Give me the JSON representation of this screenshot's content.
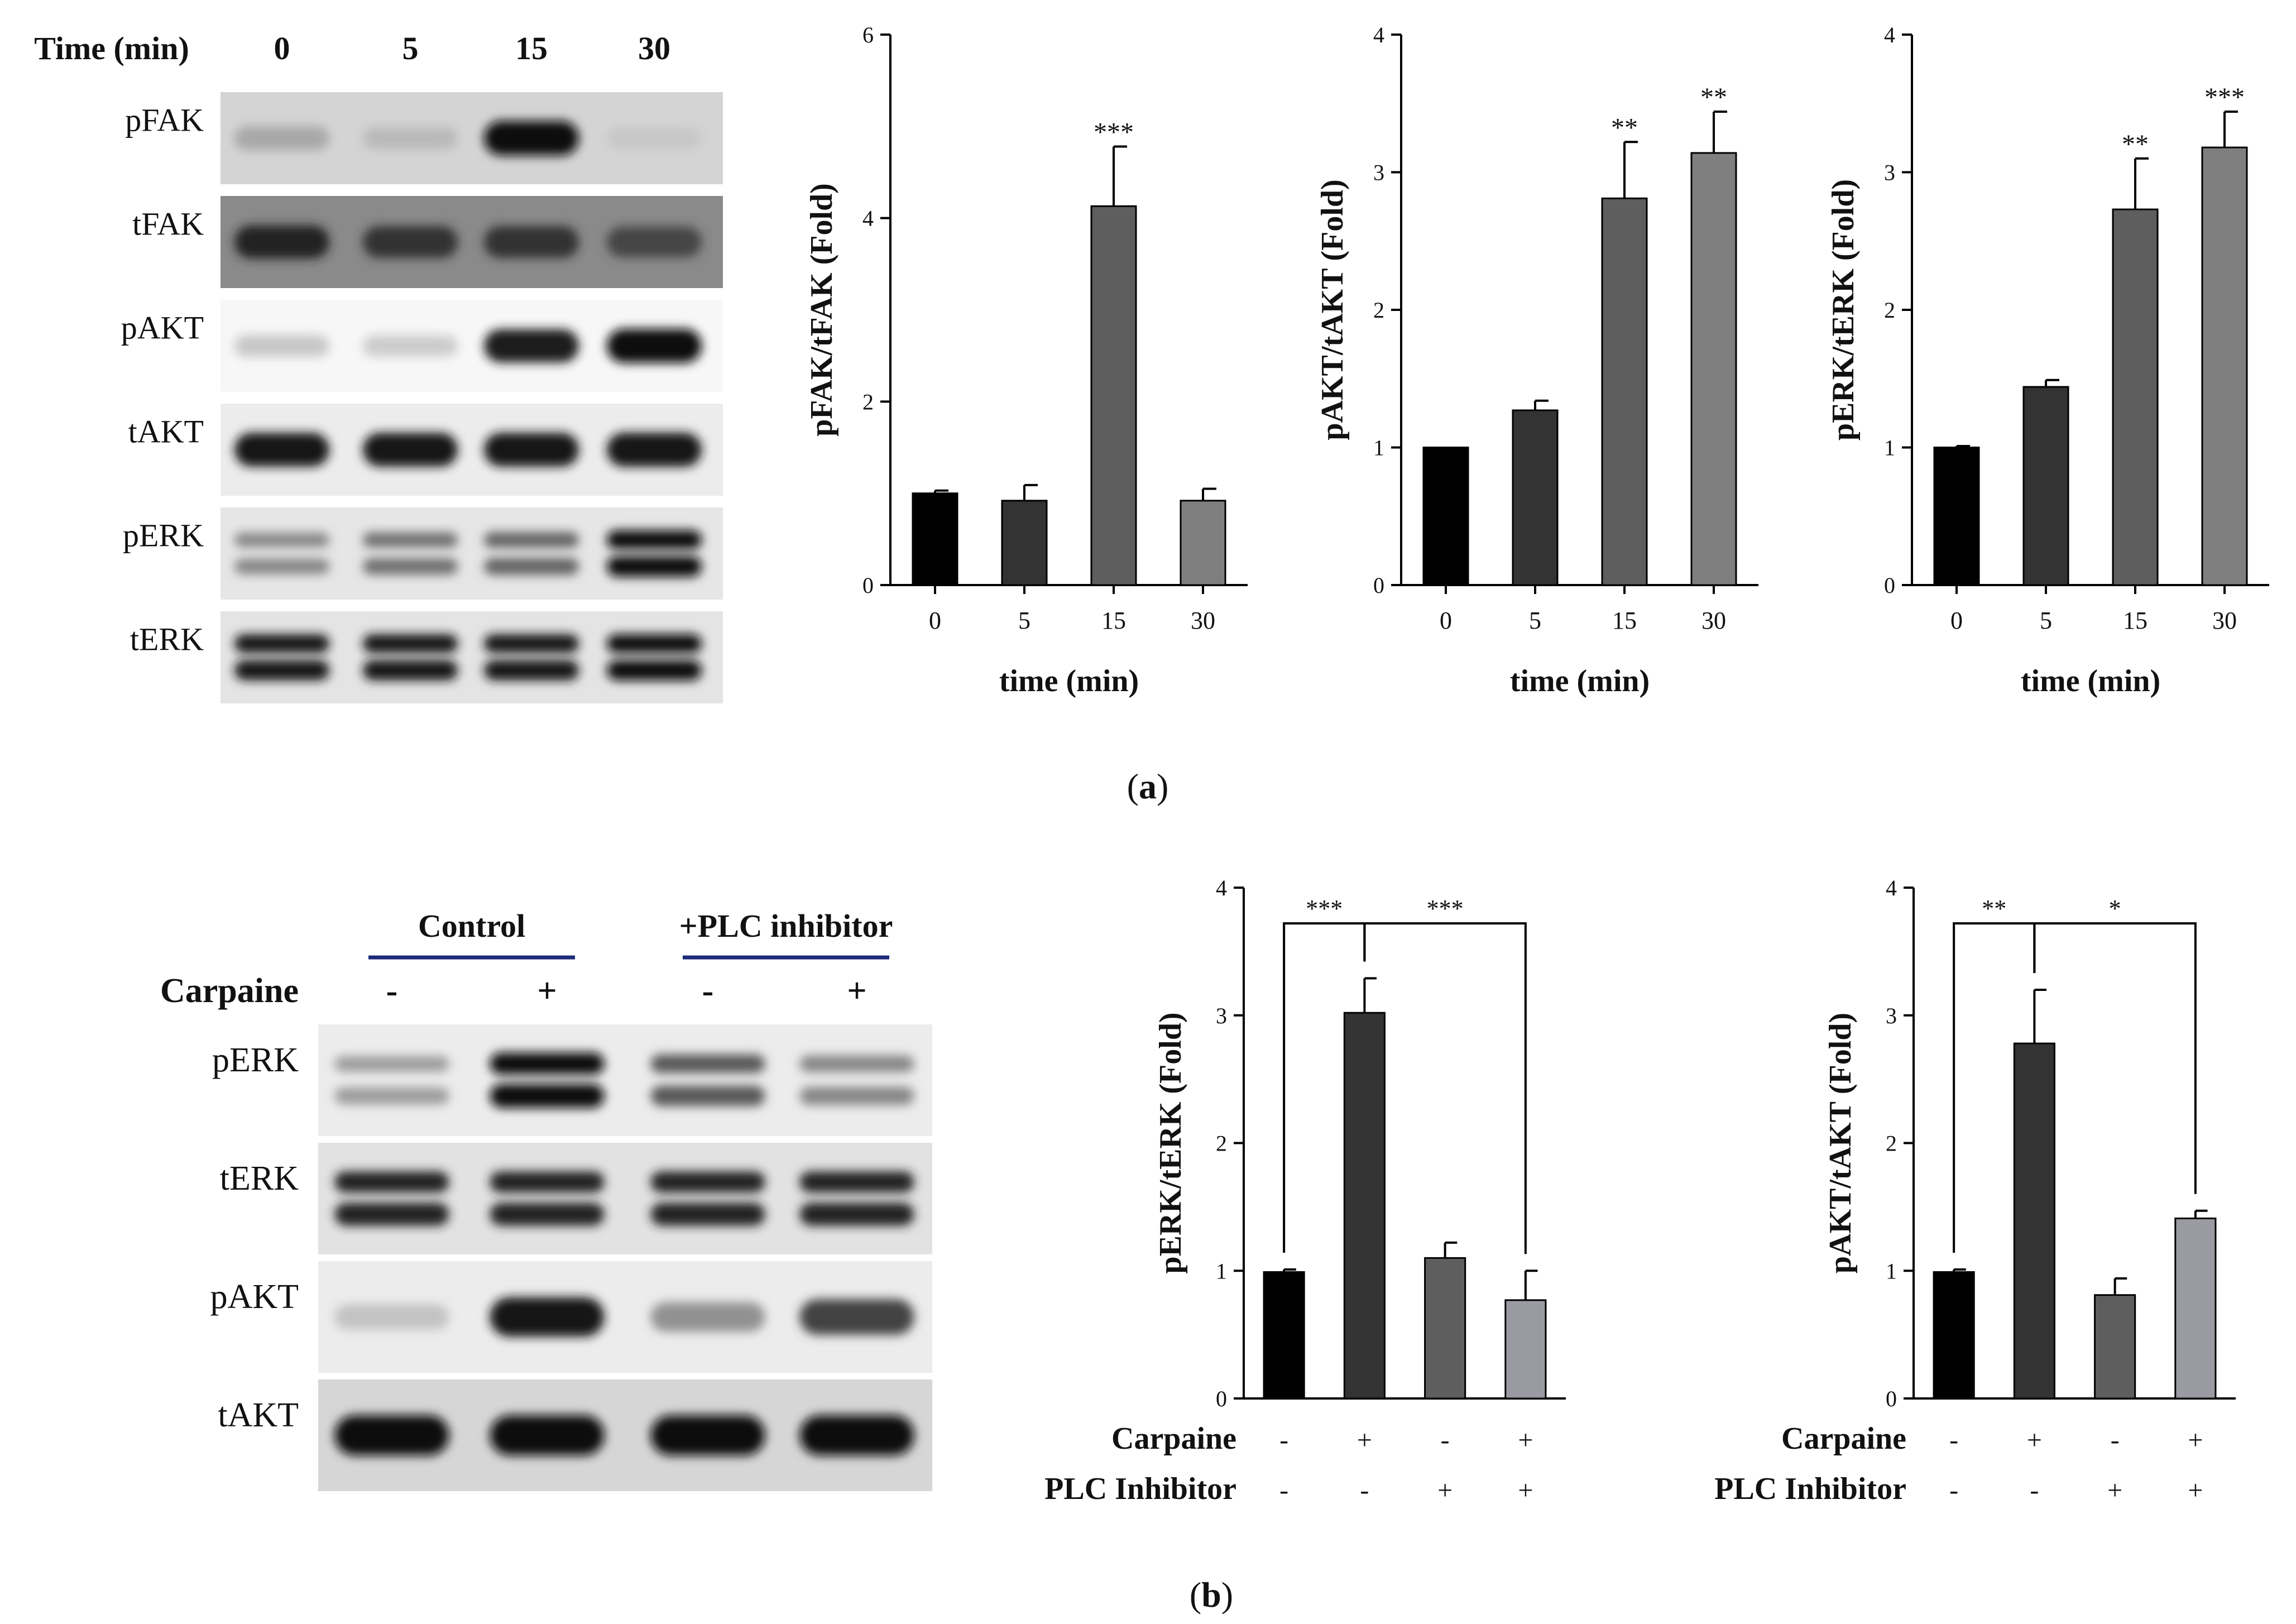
{
  "panel_a": {
    "caption": "a",
    "blot": {
      "time_header": "Time (min)",
      "time_points": [
        "0",
        "5",
        "15",
        "30"
      ],
      "rows": [
        {
          "label": "pFAK",
          "bg": "#d4d4d4",
          "intensity": [
            0.3,
            0.22,
            1.0,
            0.16
          ],
          "double": false
        },
        {
          "label": "tFAK",
          "bg": "#8a8a8a",
          "intensity": [
            0.9,
            0.82,
            0.82,
            0.74
          ],
          "double": false
        },
        {
          "label": "pAKT",
          "bg": "#f7f7f7",
          "intensity": [
            0.16,
            0.14,
            0.92,
            0.97
          ],
          "double": false
        },
        {
          "label": "tAKT",
          "bg": "#ececec",
          "intensity": [
            0.95,
            0.95,
            0.95,
            0.96
          ],
          "double": false
        },
        {
          "label": "pERK",
          "bg": "#e6e6e6",
          "intensity": [
            0.45,
            0.55,
            0.6,
            1.0
          ],
          "double": true
        },
        {
          "label": "tERK",
          "bg": "#e4e4e4",
          "intensity": [
            0.95,
            0.95,
            0.95,
            0.98
          ],
          "double": true
        }
      ]
    },
    "charts": [
      {
        "type": "bar",
        "ylabel": "pFAK/tFAK (Fold)",
        "xlabel": "time (min)",
        "ylim": [
          0,
          6
        ],
        "yticks": [
          0,
          2,
          4,
          6
        ],
        "categories": [
          "0",
          "5",
          "15",
          "30"
        ],
        "values": [
          1.0,
          0.92,
          4.13,
          0.92
        ],
        "errors": [
          0.03,
          0.17,
          0.65,
          0.13
        ],
        "significance": [
          "",
          "",
          "***",
          ""
        ],
        "colors": [
          "#000000",
          "#333333",
          "#5e5e5e",
          "#7f7f7f"
        ]
      },
      {
        "type": "bar",
        "ylabel": "pAKT/tAKT (Fold)",
        "xlabel": "time (min)",
        "ylim": [
          0,
          4
        ],
        "yticks": [
          0,
          1,
          2,
          3,
          4
        ],
        "categories": [
          "0",
          "5",
          "15",
          "30"
        ],
        "values": [
          1.0,
          1.27,
          2.81,
          3.14
        ],
        "errors": [
          0.0,
          0.07,
          0.41,
          0.3
        ],
        "significance": [
          "",
          "",
          "**",
          "**"
        ],
        "colors": [
          "#000000",
          "#333333",
          "#5e5e5e",
          "#7f7f7f"
        ]
      },
      {
        "type": "bar",
        "ylabel": "pERK/tERK (Fold)",
        "xlabel": "time (min)",
        "ylim": [
          0,
          4
        ],
        "yticks": [
          0,
          1,
          2,
          3,
          4
        ],
        "categories": [
          "0",
          "5",
          "15",
          "30"
        ],
        "values": [
          1.0,
          1.44,
          2.73,
          3.18
        ],
        "errors": [
          0.01,
          0.05,
          0.37,
          0.26
        ],
        "significance": [
          "",
          "",
          "**",
          "***"
        ],
        "colors": [
          "#000000",
          "#333333",
          "#5e5e5e",
          "#7f7f7f"
        ]
      }
    ]
  },
  "panel_b": {
    "caption": "b",
    "blot": {
      "group_labels": [
        "Control",
        "+PLC inhibitor"
      ],
      "row_label": "Carpaine",
      "signs": [
        "-",
        "+",
        "-",
        "+"
      ],
      "rows": [
        {
          "label": "pERK",
          "bg": "#ececec",
          "intensity": [
            0.35,
            1.0,
            0.65,
            0.45
          ],
          "double": true
        },
        {
          "label": "tERK",
          "bg": "#e2e2e2",
          "intensity": [
            0.9,
            0.9,
            0.9,
            0.9
          ],
          "double": true
        },
        {
          "label": "pAKT",
          "bg": "#ececec",
          "intensity": [
            0.18,
            0.95,
            0.4,
            0.75
          ],
          "double": false
        },
        {
          "label": "tAKT",
          "bg": "#d6d6d6",
          "intensity": [
            1.0,
            1.0,
            1.0,
            1.0
          ],
          "double": false
        }
      ]
    },
    "charts": [
      {
        "type": "bar",
        "ylabel": "pERK/tERK (Fold)",
        "ylim": [
          0,
          4
        ],
        "yticks": [
          0,
          1,
          2,
          3,
          4
        ],
        "values": [
          0.99,
          3.02,
          1.1,
          0.77
        ],
        "errors": [
          0.02,
          0.27,
          0.12,
          0.23
        ],
        "colors": [
          "#000000",
          "#333333",
          "#5e5e5e",
          "#9a9aa2"
        ],
        "conditions": [
          {
            "label": "Carpaine",
            "signs": [
              "-",
              "+",
              "-",
              "+"
            ]
          },
          {
            "label": "PLC Inhibitor",
            "signs": [
              "-",
              "-",
              "+",
              "+"
            ]
          }
        ],
        "brackets": [
          {
            "from": 0,
            "to": 1,
            "label": "***"
          },
          {
            "from": 1,
            "to": 3,
            "label": "***"
          }
        ]
      },
      {
        "type": "bar",
        "ylabel": "pAKT/tAKT (Fold)",
        "ylim": [
          0,
          4
        ],
        "yticks": [
          0,
          1,
          2,
          3,
          4
        ],
        "values": [
          0.99,
          2.78,
          0.81,
          1.41
        ],
        "errors": [
          0.02,
          0.42,
          0.13,
          0.06
        ],
        "colors": [
          "#000000",
          "#333333",
          "#5e5e5e",
          "#9a9aa2"
        ],
        "conditions": [
          {
            "label": "Carpaine",
            "signs": [
              "-",
              "+",
              "-",
              "+"
            ]
          },
          {
            "label": "PLC Inhibitor",
            "signs": [
              "-",
              "-",
              "+",
              "+"
            ]
          }
        ],
        "brackets": [
          {
            "from": 0,
            "to": 1,
            "label": "**"
          },
          {
            "from": 1,
            "to": 3,
            "label": "*"
          }
        ]
      }
    ]
  },
  "chart_data": [
    {
      "type": "bar",
      "ylabel": "pFAK/tFAK (Fold)",
      "xlabel": "time (min)",
      "categories": [
        "0",
        "5",
        "15",
        "30"
      ],
      "values": [
        1.0,
        0.92,
        4.13,
        0.92
      ],
      "errors": [
        0.03,
        0.17,
        0.65,
        0.13
      ],
      "ylim": [
        0,
        6
      ],
      "annotations": [
        "***"
      ]
    },
    {
      "type": "bar",
      "ylabel": "pAKT/tAKT (Fold)",
      "xlabel": "time (min)",
      "categories": [
        "0",
        "5",
        "15",
        "30"
      ],
      "values": [
        1.0,
        1.27,
        2.81,
        3.14
      ],
      "errors": [
        0.0,
        0.07,
        0.41,
        0.3
      ],
      "ylim": [
        0,
        4
      ],
      "annotations": [
        "**",
        "**"
      ]
    },
    {
      "type": "bar",
      "ylabel": "pERK/tERK (Fold)",
      "xlabel": "time (min)",
      "categories": [
        "0",
        "5",
        "15",
        "30"
      ],
      "values": [
        1.0,
        1.44,
        2.73,
        3.18
      ],
      "errors": [
        0.01,
        0.05,
        0.37,
        0.26
      ],
      "ylim": [
        0,
        4
      ],
      "annotations": [
        "**",
        "***"
      ]
    },
    {
      "type": "bar",
      "ylabel": "pERK/tERK (Fold)",
      "values": [
        0.99,
        3.02,
        1.1,
        0.77
      ],
      "errors": [
        0.02,
        0.27,
        0.12,
        0.23
      ],
      "ylim": [
        0,
        4
      ],
      "annotations": [
        "***",
        "***"
      ]
    },
    {
      "type": "bar",
      "ylabel": "pAKT/tAKT (Fold)",
      "values": [
        0.99,
        2.78,
        0.81,
        1.41
      ],
      "errors": [
        0.02,
        0.42,
        0.13,
        0.06
      ],
      "ylim": [
        0,
        4
      ],
      "annotations": [
        "**",
        "*"
      ]
    }
  ]
}
